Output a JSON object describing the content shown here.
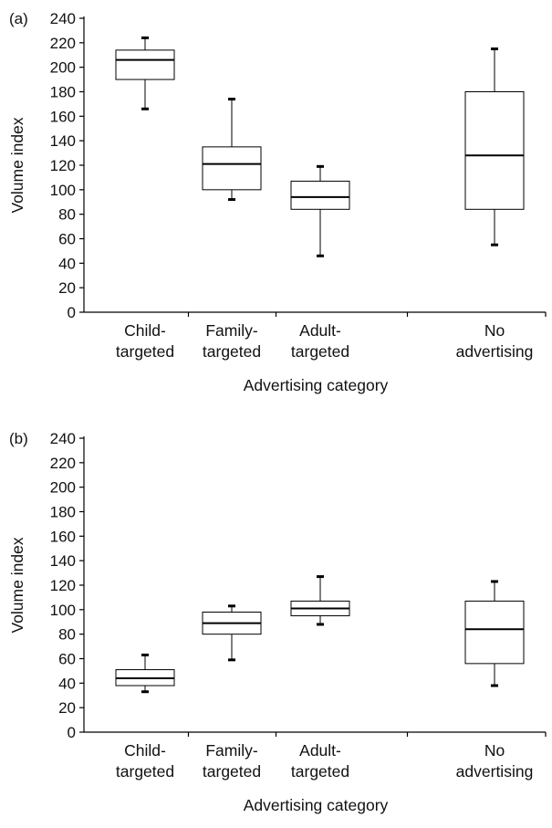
{
  "chart_data": [
    {
      "type": "box",
      "panel_label": "(a)",
      "title": "",
      "xlabel": "Advertising category",
      "ylabel": "Volume index",
      "ylim": [
        0,
        240
      ],
      "yticks": [
        0,
        20,
        40,
        60,
        80,
        100,
        120,
        140,
        160,
        180,
        200,
        220,
        240
      ],
      "categories": [
        {
          "line1": "Child-",
          "line2": "targeted"
        },
        {
          "line1": "Family-",
          "line2": "targeted"
        },
        {
          "line1": "Adult-",
          "line2": "targeted"
        },
        {
          "line1": "No",
          "line2": "advertising"
        }
      ],
      "boxes": [
        {
          "min": 166,
          "q1": 190,
          "median": 206,
          "q3": 214,
          "max": 224
        },
        {
          "min": 92,
          "q1": 100,
          "median": 121,
          "q3": 135,
          "max": 174
        },
        {
          "min": 46,
          "q1": 84,
          "median": 94,
          "q3": 107,
          "max": 119
        },
        {
          "min": 55,
          "q1": 84,
          "median": 128,
          "q3": 180,
          "max": 215
        }
      ],
      "grid": false
    },
    {
      "type": "box",
      "panel_label": "(b)",
      "title": "",
      "xlabel": "Advertising category",
      "ylabel": "Volume index",
      "ylim": [
        0,
        240
      ],
      "yticks": [
        0,
        20,
        40,
        60,
        80,
        100,
        120,
        140,
        160,
        180,
        200,
        220,
        240
      ],
      "categories": [
        {
          "line1": "Child-",
          "line2": "targeted"
        },
        {
          "line1": "Family-",
          "line2": "targeted"
        },
        {
          "line1": "Adult-",
          "line2": "targeted"
        },
        {
          "line1": "No",
          "line2": "advertising"
        }
      ],
      "boxes": [
        {
          "min": 33,
          "q1": 38,
          "median": 44,
          "q3": 51,
          "max": 63
        },
        {
          "min": 59,
          "q1": 80,
          "median": 89,
          "q3": 98,
          "max": 103
        },
        {
          "min": 88,
          "q1": 95,
          "median": 101,
          "q3": 107,
          "max": 127
        },
        {
          "min": 38,
          "q1": 56,
          "median": 84,
          "q3": 107,
          "max": 123
        }
      ],
      "grid": false
    }
  ]
}
